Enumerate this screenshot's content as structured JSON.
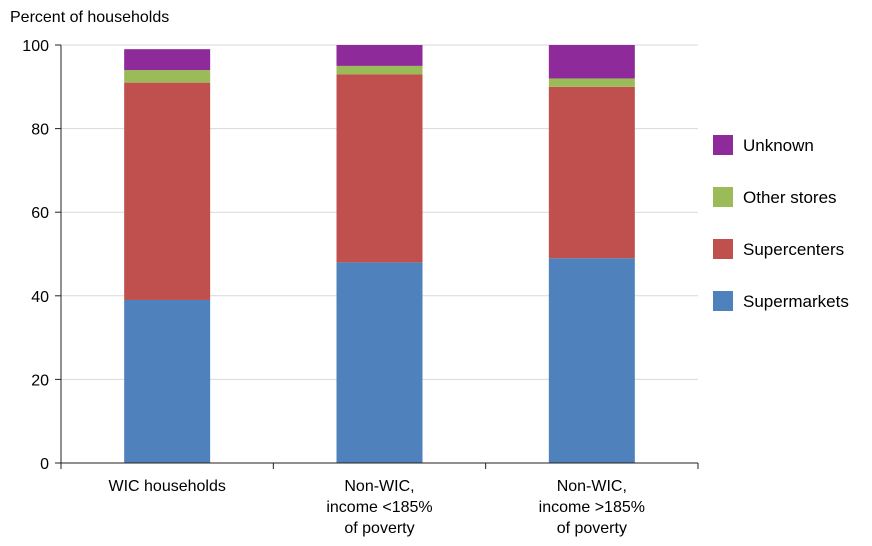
{
  "chart_data": {
    "type": "bar",
    "stacked": true,
    "ylabel": "Percent of households",
    "ylim": [
      0,
      100
    ],
    "yticks": [
      0,
      20,
      40,
      60,
      80,
      100
    ],
    "grid": true,
    "legend_position": "right",
    "categories": [
      [
        "WIC households"
      ],
      [
        "Non-WIC,",
        "income <185%",
        "of poverty"
      ],
      [
        "Non-WIC,",
        "income >185%",
        "of poverty"
      ]
    ],
    "series": [
      {
        "name": "Supermarkets",
        "color": "#4f81bd",
        "values": [
          39,
          48,
          49
        ]
      },
      {
        "name": "Supercenters",
        "color": "#c0504d",
        "values": [
          52,
          45,
          41
        ]
      },
      {
        "name": "Other stores",
        "color": "#9bbb59",
        "values": [
          3,
          2,
          2
        ]
      },
      {
        "name": "Unknown",
        "color": "#8e2a9a",
        "values": [
          5,
          5,
          8
        ]
      }
    ],
    "legend_order": [
      "Unknown",
      "Other stores",
      "Supercenters",
      "Supermarkets"
    ]
  }
}
